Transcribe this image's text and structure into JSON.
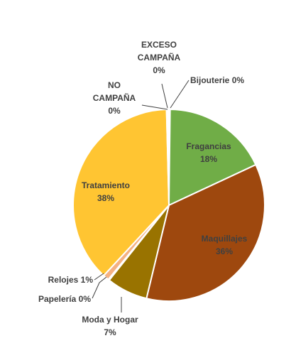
{
  "chart_data": {
    "type": "pie",
    "title": "",
    "slices": [
      {
        "key": "bijouterie",
        "label": "Bijouterie",
        "pct_label": "0%",
        "value": 0.2,
        "color": "#4472c4"
      },
      {
        "key": "fragancias",
        "label": "Fragancias",
        "pct_label": "18%",
        "value": 18,
        "color": "#70ad47"
      },
      {
        "key": "maquillajes",
        "label": "Maquillajes",
        "pct_label": "36%",
        "value": 36,
        "color": "#9e480e"
      },
      {
        "key": "moda-y-hogar",
        "label": "Moda y Hogar",
        "pct_label": "7%",
        "value": 7,
        "color": "#997300"
      },
      {
        "key": "papeleria",
        "label": "Papelería",
        "pct_label": "0%",
        "value": 0.2,
        "color": "#264478"
      },
      {
        "key": "relojes",
        "label": "Relojes",
        "pct_label": "1%",
        "value": 1,
        "color": "#f4b183"
      },
      {
        "key": "tratamiento",
        "label": "Tratamiento",
        "pct_label": "38%",
        "value": 38,
        "color": "#ffc532"
      },
      {
        "key": "no-campana",
        "label": "NO CAMPAÑA",
        "pct_label": "0%",
        "value": 0.2,
        "color": "#a5a5a5"
      },
      {
        "key": "exceso-campana",
        "label": "EXCESO CAMPAÑA",
        "pct_label": "0%",
        "value": 0.2,
        "color": "#ed7d31"
      }
    ]
  }
}
